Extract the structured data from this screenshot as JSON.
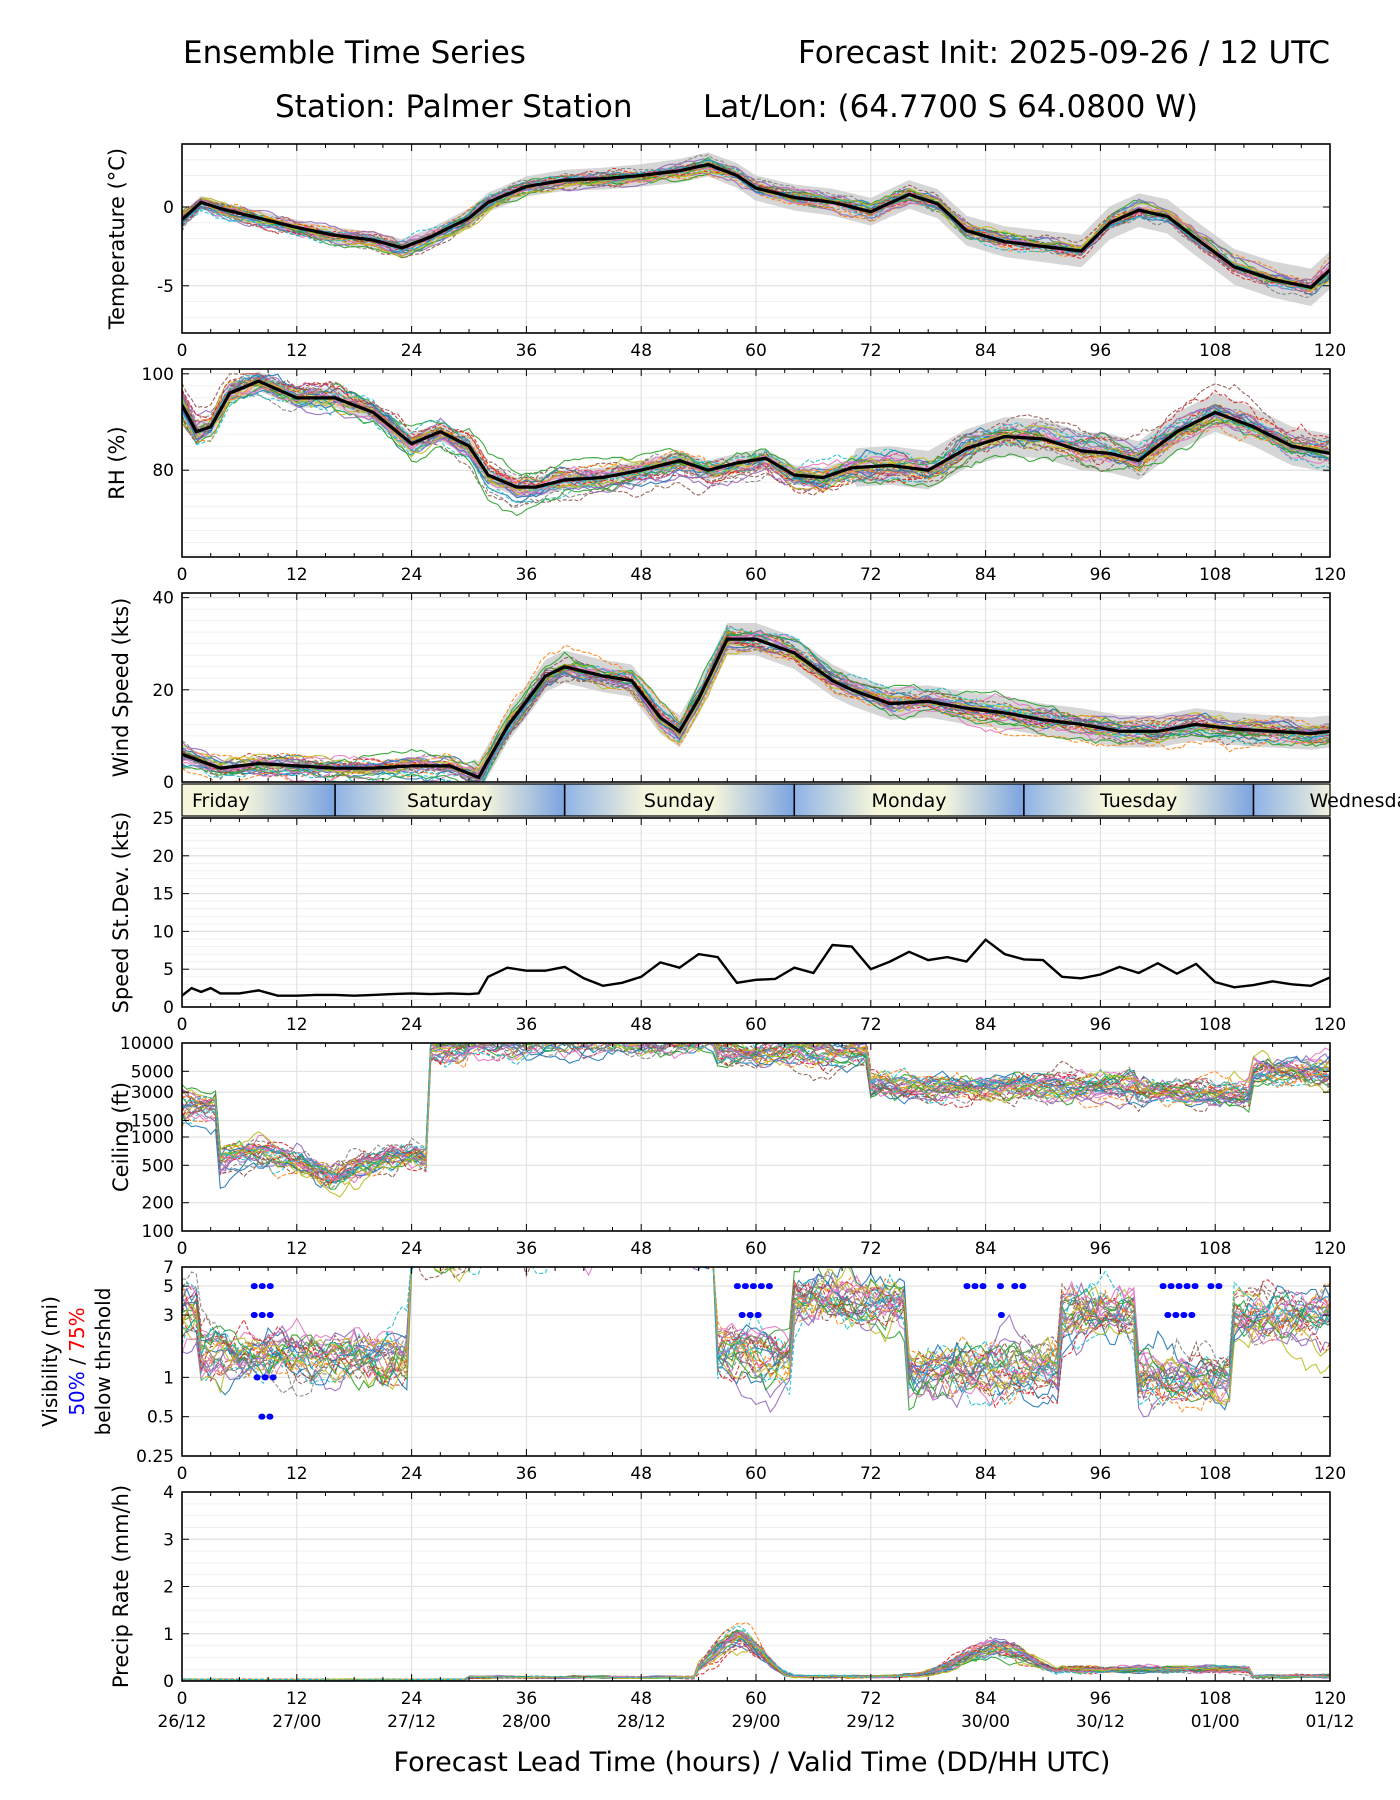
{
  "header": {
    "title_left": "Ensemble Time Series",
    "title_right": "Forecast Init: 2025-09-26 / 12 UTC",
    "station": "Station: Palmer Station",
    "latlon": "Lat/Lon: (64.7700 S 64.0800 W)"
  },
  "x_axis": {
    "xlim": [
      0,
      120
    ],
    "ticks": [
      0,
      12,
      24,
      36,
      48,
      60,
      72,
      84,
      96,
      108,
      120
    ],
    "valid_time_labels": [
      "26/12",
      "27/00",
      "27/12",
      "28/00",
      "28/12",
      "29/00",
      "29/12",
      "30/00",
      "30/12",
      "01/00",
      "01/12"
    ],
    "xlabel": "Forecast Lead Time (hours) / Valid Time (DD/HH UTC)"
  },
  "day_strip": {
    "days": [
      {
        "label": "Friday",
        "start": 0,
        "end": 16
      },
      {
        "label": "Saturday",
        "start": 16,
        "end": 40
      },
      {
        "label": "Sunday",
        "start": 40,
        "end": 64
      },
      {
        "label": "Monday",
        "start": 64,
        "end": 88
      },
      {
        "label": "Tuesday",
        "start": 88,
        "end": 112
      },
      {
        "label": "Wednesday",
        "start": 112,
        "end": 136
      }
    ]
  },
  "colors": {
    "mean_line": "#000000",
    "spread_band": "#c8c8c8",
    "threshold_50": "#0000ff",
    "threshold_75": "#ff0000",
    "members": [
      "#1f77b4",
      "#ff7f0e",
      "#2ca02c",
      "#d62728",
      "#9467bd",
      "#8c564b",
      "#e377c2",
      "#7f7f7f",
      "#bcbd22",
      "#17becf"
    ]
  },
  "chart_data": [
    {
      "name": "temperature",
      "type": "line",
      "ylabel": "Temperature (°C)",
      "ylim": [
        -8,
        4
      ],
      "yticks": [
        -5,
        0
      ],
      "ensemble_mean": {
        "x": [
          0,
          2,
          4,
          8,
          12,
          16,
          20,
          23,
          26,
          30,
          32,
          36,
          40,
          44,
          48,
          52,
          55,
          58,
          60,
          64,
          68,
          72,
          76,
          79,
          82,
          86,
          90,
          94,
          97,
          100,
          103,
          106,
          110,
          114,
          118,
          120
        ],
        "y": [
          -0.8,
          0.3,
          -0.1,
          -0.7,
          -1.3,
          -1.8,
          -2.1,
          -2.6,
          -1.9,
          -0.7,
          0.3,
          1.3,
          1.7,
          1.8,
          2.0,
          2.3,
          2.7,
          2.0,
          1.2,
          0.6,
          0.3,
          -0.3,
          0.8,
          0.2,
          -1.5,
          -2.2,
          -2.5,
          -2.8,
          -1.0,
          -0.2,
          -0.6,
          -2.0,
          -3.8,
          -4.6,
          -5.1,
          -4.0
        ]
      }
    },
    {
      "name": "relative_humidity",
      "type": "line",
      "ylabel": "RH (%)",
      "ylim": [
        62,
        101
      ],
      "yticks": [
        80,
        100
      ],
      "ensemble_mean": {
        "x": [
          0,
          1.5,
          3,
          5,
          8,
          12,
          16,
          20,
          24,
          27,
          30,
          32,
          35,
          37,
          40,
          44,
          48,
          52,
          55,
          58,
          61,
          64,
          67,
          70,
          74,
          78,
          82,
          86,
          90,
          94,
          97,
          100,
          104,
          108,
          112,
          116,
          120
        ],
        "y": [
          93.5,
          88.0,
          89.0,
          96.0,
          98.5,
          95.0,
          95.0,
          92.0,
          85.5,
          88.0,
          85.0,
          79.0,
          76.5,
          76.5,
          78.0,
          78.5,
          80.0,
          82.0,
          80.0,
          81.5,
          82.5,
          79.0,
          78.5,
          80.5,
          81.0,
          80.0,
          84.5,
          87.0,
          86.5,
          84.0,
          83.5,
          82.0,
          88.0,
          92.0,
          89.0,
          85.0,
          83.5
        ]
      }
    },
    {
      "name": "wind_speed",
      "type": "line",
      "ylabel": "Wind Speed (kts)",
      "ylim": [
        0,
        41
      ],
      "yticks": [
        0,
        20,
        40
      ],
      "ensemble_mean": {
        "x": [
          0,
          4,
          8,
          12,
          16,
          20,
          24,
          28,
          31,
          34,
          38,
          40,
          44,
          47,
          50,
          52,
          54,
          57,
          60,
          64,
          68,
          70,
          74,
          78,
          82,
          86,
          90,
          94,
          98,
          102,
          106,
          110,
          114,
          118,
          120
        ],
        "y": [
          6,
          3,
          4,
          3.5,
          3,
          3,
          3.5,
          3.5,
          1,
          12,
          23,
          25,
          23,
          22,
          14,
          11,
          18,
          31,
          31,
          28,
          22,
          20,
          17,
          17.5,
          16,
          15,
          13.5,
          12.5,
          11,
          11,
          12.5,
          11.5,
          11,
          10.5,
          11
        ]
      }
    },
    {
      "name": "speed_stdev",
      "type": "line",
      "ylabel": "Speed St.Dev. (kts)",
      "ylim": [
        0,
        25
      ],
      "yticks": [
        0,
        5,
        10,
        15,
        20,
        25
      ],
      "x": [
        0,
        1,
        2,
        3,
        4,
        6,
        8,
        10,
        12,
        14,
        16,
        18,
        20,
        22,
        24,
        26,
        28,
        30,
        31,
        32,
        34,
        36,
        38,
        40,
        42,
        44,
        46,
        48,
        50,
        52,
        54,
        56,
        58,
        60,
        62,
        64,
        66,
        68,
        70,
        72,
        74,
        76,
        78,
        80,
        82,
        84,
        86,
        88,
        90,
        92,
        94,
        96,
        98,
        100,
        102,
        104,
        106,
        108,
        110,
        112,
        114,
        116,
        118,
        120
      ],
      "y": [
        1.5,
        2.5,
        2.0,
        2.5,
        1.8,
        1.8,
        2.2,
        1.5,
        1.5,
        1.6,
        1.6,
        1.5,
        1.6,
        1.7,
        1.8,
        1.7,
        1.8,
        1.7,
        1.8,
        4.0,
        5.2,
        4.8,
        4.8,
        5.3,
        3.8,
        2.8,
        3.2,
        4.0,
        5.9,
        5.2,
        7.0,
        6.6,
        3.2,
        3.6,
        3.7,
        5.2,
        4.5,
        8.2,
        8.0,
        5.0,
        6.0,
        7.3,
        6.2,
        6.6,
        6.0,
        8.9,
        7.0,
        6.3,
        6.2,
        4.0,
        3.8,
        4.3,
        5.3,
        4.5,
        5.8,
        4.4,
        5.7,
        3.3,
        2.6,
        2.9,
        3.4,
        3.0,
        2.8,
        3.9
      ]
    },
    {
      "name": "ceiling",
      "type": "line",
      "ylabel": "Ceiling (ft)",
      "yscale": "log",
      "ylim": [
        100,
        10000
      ],
      "yticks": [
        100,
        200,
        500,
        1000,
        1500,
        3000,
        5000,
        10000
      ]
    },
    {
      "name": "visibility",
      "type": "line",
      "ylabel": "Visibility (mi)",
      "ylabel_50": "50%",
      "ylabel_sep": " / ",
      "ylabel_75": "75%",
      "ylabel_below": "below thrshold",
      "yscale": "log",
      "ylim": [
        0.25,
        7
      ],
      "yticks": [
        0.25,
        0.5,
        1,
        3,
        5,
        7
      ],
      "threshold_markers_50pct": [
        {
          "threshold": 5,
          "start": 7.5,
          "end": 9.8
        },
        {
          "threshold": 3,
          "start": 7.5,
          "end": 9.8
        },
        {
          "threshold": 1,
          "start": 7.8,
          "end": 9.8
        },
        {
          "threshold": 0.5,
          "start": 8.3,
          "end": 9.8
        },
        {
          "threshold": 5,
          "start": 58.0,
          "end": 62.0
        },
        {
          "threshold": 3,
          "start": 58.5,
          "end": 60.5
        },
        {
          "threshold": 5,
          "start": 82.0,
          "end": 84.2
        },
        {
          "threshold": 5,
          "start": 85.5,
          "end": 86.3
        },
        {
          "threshold": 3,
          "start": 85.6,
          "end": 86.0
        },
        {
          "threshold": 5,
          "start": 87.0,
          "end": 88.3
        },
        {
          "threshold": 5,
          "start": 102.5,
          "end": 106.5
        },
        {
          "threshold": 3,
          "start": 103.0,
          "end": 106.0
        },
        {
          "threshold": 5,
          "start": 107.5,
          "end": 109.0
        }
      ]
    },
    {
      "name": "precip_rate",
      "type": "line",
      "ylabel": "Precip Rate (mm/h)",
      "ylim": [
        0,
        4
      ],
      "yticks": [
        0,
        1,
        2,
        3,
        4
      ]
    }
  ]
}
